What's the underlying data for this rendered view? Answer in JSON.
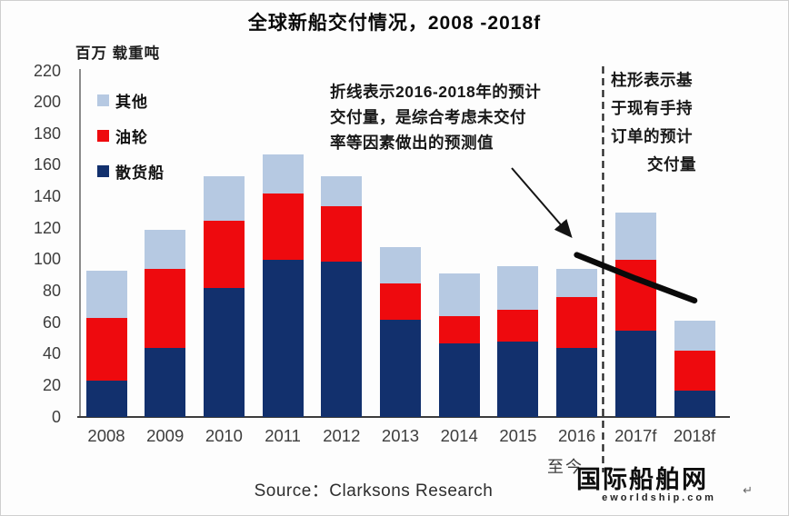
{
  "title": "全球新船交付情况，2008 -2018f",
  "y_axis_unit": "百万 载重吨",
  "legend": [
    {
      "label": "其他",
      "color": "#b6c9e2"
    },
    {
      "label": "油轮",
      "color": "#ee0a0e"
    },
    {
      "label": "散货船",
      "color": "#12306d"
    }
  ],
  "annotations": {
    "line_note": [
      "折线表示2016-2018年的预计",
      "交付量，是综合考虑未交付",
      "率等因素做出的预测值"
    ],
    "bar_note": [
      "柱形表示基",
      "于现有手持",
      "订单的预计",
      "交付量"
    ]
  },
  "x_sub_label": "至今",
  "source": "Source：Clarksons Research",
  "watermark": {
    "cn": "国际船舶网",
    "en": "eworldship.com",
    "return_mark": "↵"
  },
  "chart_data": {
    "type": "bar",
    "stacked": true,
    "title": "全球新船交付情况，2008 -2018f",
    "ylabel": "百万 载重吨",
    "ylim": [
      0,
      220
    ],
    "y_tick_step": 20,
    "grid": false,
    "legend_position": "upper-left",
    "categories": [
      "2008",
      "2009",
      "2010",
      "2011",
      "2012",
      "2013",
      "2014",
      "2015",
      "2016",
      "2017f",
      "2018f"
    ],
    "series": [
      {
        "name": "散货船",
        "color": "#12306d",
        "values": [
          23,
          44,
          82,
          100,
          99,
          62,
          47,
          48,
          44,
          55,
          17
        ]
      },
      {
        "name": "油轮",
        "color": "#ee0a0e",
        "values": [
          40,
          50,
          43,
          42,
          35,
          23,
          17,
          20,
          32,
          45,
          25
        ]
      },
      {
        "name": "其他",
        "color": "#b6c9e2",
        "values": [
          30,
          25,
          28,
          25,
          19,
          23,
          27,
          28,
          18,
          30,
          19
        ]
      }
    ],
    "trend_line": {
      "name": "2016-2018预测交付量折线",
      "categories": [
        "2016",
        "2017f",
        "2018f"
      ],
      "values": [
        103,
        88,
        74
      ],
      "color": "#0a0a0a"
    },
    "divider_after_category": "2016"
  }
}
